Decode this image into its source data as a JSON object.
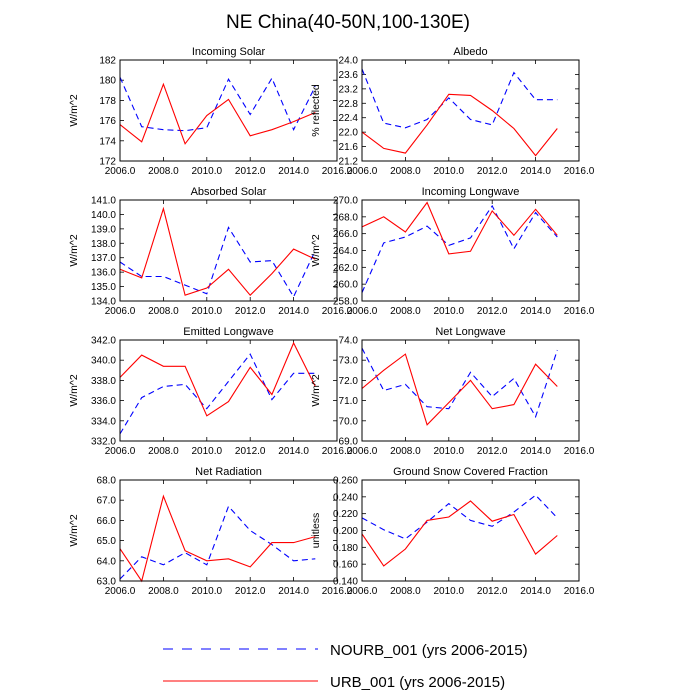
{
  "figure": {
    "title": "NE China(40-50N,100-130E)",
    "legend": [
      {
        "label": "NOURB_001 (yrs 2006-2015)",
        "color": "#0000ff",
        "dash": "dashed"
      },
      {
        "label": "URB_001 (yrs 2006-2015)",
        "color": "#ff0000",
        "dash": "solid"
      }
    ]
  },
  "chart_data": [
    {
      "type": "line",
      "title": "Incoming Solar",
      "ylabel": "W/m^2",
      "xlim": [
        2006,
        2016
      ],
      "xticks": [
        2006,
        2008,
        2010,
        2012,
        2014,
        2016
      ],
      "xtick_labels": [
        "2006.0",
        "2008.0",
        "2010.0",
        "2012.0",
        "2014.0",
        "2016.0"
      ],
      "ylim": [
        172,
        182
      ],
      "yticks": [
        172,
        174,
        176,
        178,
        180,
        182
      ],
      "ytick_labels": [
        "172",
        "174",
        "176",
        "178",
        "180",
        "182"
      ],
      "x": [
        2006,
        2007,
        2008,
        2009,
        2010,
        2011,
        2012,
        2013,
        2014,
        2015
      ],
      "series": [
        {
          "name": "NOURB_001",
          "values": [
            180.3,
            175.4,
            175.1,
            175.0,
            175.3,
            180.1,
            176.6,
            180.2,
            175.1,
            179.4
          ]
        },
        {
          "name": "URB_001",
          "values": [
            175.6,
            173.9,
            179.6,
            173.7,
            176.5,
            178.1,
            174.5,
            175.1,
            175.9,
            176.8
          ]
        }
      ]
    },
    {
      "type": "line",
      "title": "Albedo",
      "ylabel": "% reflected",
      "xlim": [
        2006,
        2016
      ],
      "xticks": [
        2006,
        2008,
        2010,
        2012,
        2014,
        2016
      ],
      "xtick_labels": [
        "2006.0",
        "2008.0",
        "2010.0",
        "2012.0",
        "2014.0",
        "2016.0"
      ],
      "ylim": [
        21.2,
        24.0
      ],
      "yticks": [
        21.2,
        21.6,
        22.0,
        22.4,
        22.8,
        23.2,
        23.6,
        24.0
      ],
      "ytick_labels": [
        "21.2",
        "21.6",
        "22.0",
        "22.4",
        "22.8",
        "23.2",
        "23.6",
        "24.0"
      ],
      "x": [
        2006,
        2007,
        2008,
        2009,
        2010,
        2011,
        2012,
        2013,
        2014,
        2015
      ],
      "series": [
        {
          "name": "NOURB_001",
          "values": [
            23.75,
            22.25,
            22.12,
            22.35,
            22.95,
            22.35,
            22.2,
            23.65,
            22.9,
            22.9
          ]
        },
        {
          "name": "URB_001",
          "values": [
            22.0,
            21.55,
            21.42,
            22.2,
            23.05,
            23.02,
            22.6,
            22.1,
            21.35,
            22.1
          ]
        }
      ]
    },
    {
      "type": "line",
      "title": "Absorbed Solar",
      "ylabel": "W/m^2",
      "xlim": [
        2006,
        2016
      ],
      "xticks": [
        2006,
        2008,
        2010,
        2012,
        2014,
        2016
      ],
      "xtick_labels": [
        "2006.0",
        "2008.0",
        "2010.0",
        "2012.0",
        "2014.0",
        "2016.0"
      ],
      "ylim": [
        134.0,
        141.0
      ],
      "yticks": [
        134,
        135,
        136,
        137,
        138,
        139,
        140,
        141
      ],
      "ytick_labels": [
        "134.0",
        "135.0",
        "136.0",
        "137.0",
        "138.0",
        "139.0",
        "140.0",
        "141.0"
      ],
      "x": [
        2006,
        2007,
        2008,
        2009,
        2010,
        2011,
        2012,
        2013,
        2014,
        2015
      ],
      "series": [
        {
          "name": "NOURB_001",
          "values": [
            136.7,
            135.7,
            135.7,
            135.1,
            134.5,
            139.1,
            136.7,
            136.8,
            134.3,
            137.5
          ]
        },
        {
          "name": "URB_001",
          "values": [
            136.2,
            135.6,
            140.4,
            134.4,
            134.9,
            136.2,
            134.4,
            135.9,
            137.6,
            136.9
          ]
        }
      ]
    },
    {
      "type": "line",
      "title": "Incoming Longwave",
      "ylabel": "W/m^2",
      "xlim": [
        2006,
        2016
      ],
      "xticks": [
        2006,
        2008,
        2010,
        2012,
        2014,
        2016
      ],
      "xtick_labels": [
        "2006.0",
        "2008.0",
        "2010.0",
        "2012.0",
        "2014.0",
        "2016.0"
      ],
      "ylim": [
        258.0,
        270.0
      ],
      "yticks": [
        258,
        260,
        262,
        264,
        266,
        268,
        270
      ],
      "ytick_labels": [
        "258.0",
        "260.0",
        "262.0",
        "264.0",
        "266.0",
        "268.0",
        "270.0"
      ],
      "x": [
        2006,
        2007,
        2008,
        2009,
        2010,
        2011,
        2012,
        2013,
        2014,
        2015
      ],
      "series": [
        {
          "name": "NOURB_001",
          "values": [
            259.0,
            264.9,
            265.6,
            266.9,
            264.6,
            265.5,
            269.3,
            264.2,
            268.5,
            265.6
          ]
        },
        {
          "name": "URB_001",
          "values": [
            266.8,
            268.0,
            266.2,
            269.7,
            263.6,
            263.9,
            268.7,
            265.8,
            268.9,
            265.8
          ]
        }
      ]
    },
    {
      "type": "line",
      "title": "Emitted Longwave",
      "ylabel": "W/m^2",
      "xlim": [
        2006,
        2016
      ],
      "xticks": [
        2006,
        2008,
        2010,
        2012,
        2014,
        2016
      ],
      "xtick_labels": [
        "2006.0",
        "2008.0",
        "2010.0",
        "2012.0",
        "2014.0",
        "2016.0"
      ],
      "ylim": [
        332.0,
        342.0
      ],
      "yticks": [
        332,
        334,
        336,
        338,
        340,
        342
      ],
      "ytick_labels": [
        "332.0",
        "334.0",
        "336.0",
        "338.0",
        "340.0",
        "342.0"
      ],
      "x": [
        2006,
        2007,
        2008,
        2009,
        2010,
        2011,
        2012,
        2013,
        2014,
        2015
      ],
      "series": [
        {
          "name": "NOURB_001",
          "values": [
            332.7,
            336.3,
            337.4,
            337.6,
            335.2,
            337.9,
            340.6,
            336.1,
            338.7,
            338.7
          ]
        },
        {
          "name": "URB_001",
          "values": [
            338.3,
            340.5,
            339.4,
            339.4,
            334.5,
            335.9,
            339.3,
            336.6,
            341.7,
            337.4
          ]
        }
      ]
    },
    {
      "type": "line",
      "title": "Net Longwave",
      "ylabel": "W/m^2",
      "xlim": [
        2006,
        2016
      ],
      "xticks": [
        2006,
        2008,
        2010,
        2012,
        2014,
        2016
      ],
      "xtick_labels": [
        "2006.0",
        "2008.0",
        "2010.0",
        "2012.0",
        "2014.0",
        "2016.0"
      ],
      "ylim": [
        69.0,
        74.0
      ],
      "yticks": [
        69,
        70,
        71,
        72,
        73,
        74
      ],
      "ytick_labels": [
        "69.0",
        "70.0",
        "71.0",
        "72.0",
        "73.0",
        "74.0"
      ],
      "x": [
        2006,
        2007,
        2008,
        2009,
        2010,
        2011,
        2012,
        2013,
        2014,
        2015
      ],
      "series": [
        {
          "name": "NOURB_001",
          "values": [
            73.6,
            71.5,
            71.8,
            70.7,
            70.6,
            72.4,
            71.2,
            72.1,
            70.2,
            73.5
          ]
        },
        {
          "name": "URB_001",
          "values": [
            71.6,
            72.5,
            73.3,
            69.8,
            70.9,
            72.0,
            70.6,
            70.8,
            72.8,
            71.7
          ]
        }
      ]
    },
    {
      "type": "line",
      "title": "Net Radiation",
      "ylabel": "W/m^2",
      "xlim": [
        2006,
        2016
      ],
      "xticks": [
        2006,
        2008,
        2010,
        2012,
        2014,
        2016
      ],
      "xtick_labels": [
        "2006.0",
        "2008.0",
        "2010.0",
        "2012.0",
        "2014.0",
        "2016.0"
      ],
      "ylim": [
        63.0,
        68.0
      ],
      "yticks": [
        63,
        64,
        65,
        66,
        67,
        68
      ],
      "ytick_labels": [
        "63.0",
        "64.0",
        "65.0",
        "66.0",
        "67.0",
        "68.0"
      ],
      "x": [
        2006,
        2007,
        2008,
        2009,
        2010,
        2011,
        2012,
        2013,
        2014,
        2015
      ],
      "series": [
        {
          "name": "NOURB_001",
          "values": [
            63.1,
            64.2,
            63.8,
            64.4,
            63.8,
            66.7,
            65.5,
            64.8,
            64.0,
            64.1
          ]
        },
        {
          "name": "URB_001",
          "values": [
            64.6,
            63.0,
            67.2,
            64.5,
            64.0,
            64.1,
            63.7,
            64.9,
            64.9,
            65.2
          ]
        }
      ]
    },
    {
      "type": "line",
      "title": "Ground Snow Covered Fraction",
      "ylabel": "unitless",
      "xlim": [
        2006,
        2016
      ],
      "xticks": [
        2006,
        2008,
        2010,
        2012,
        2014,
        2016
      ],
      "xtick_labels": [
        "2006.0",
        "2008.0",
        "2010.0",
        "2012.0",
        "2014.0",
        "2016.0"
      ],
      "ylim": [
        0.14,
        0.26
      ],
      "yticks": [
        0.14,
        0.16,
        0.18,
        0.2,
        0.22,
        0.24,
        0.26
      ],
      "ytick_labels": [
        "0.140",
        "0.160",
        "0.180",
        "0.200",
        "0.220",
        "0.240",
        "0.260"
      ],
      "x": [
        2006,
        2007,
        2008,
        2009,
        2010,
        2011,
        2012,
        2013,
        2014,
        2015
      ],
      "series": [
        {
          "name": "NOURB_001",
          "values": [
            0.215,
            0.201,
            0.19,
            0.21,
            0.232,
            0.212,
            0.205,
            0.222,
            0.242,
            0.215
          ]
        },
        {
          "name": "URB_001",
          "values": [
            0.196,
            0.158,
            0.178,
            0.212,
            0.216,
            0.235,
            0.211,
            0.219,
            0.172,
            0.194
          ]
        }
      ]
    }
  ]
}
